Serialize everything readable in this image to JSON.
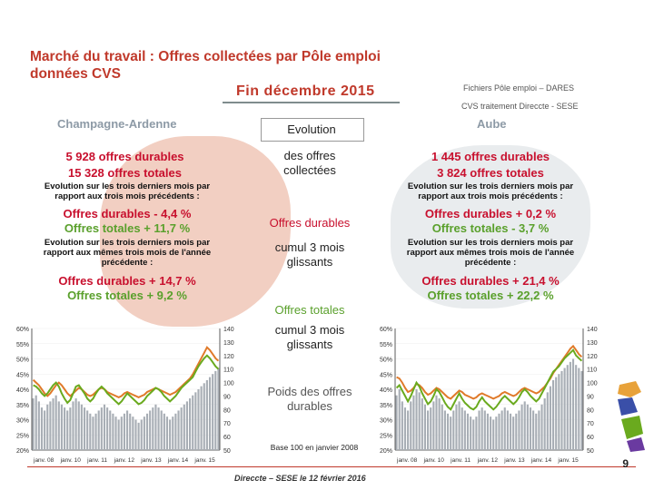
{
  "header": {
    "title_line1": "Marché du travail : Offres collectées par Pôle emploi",
    "title_line2": "données CVS",
    "period": "Fin  décembre  2015",
    "source_line1": "Fichiers Pôle emploi – DARES",
    "source_line2": "CVS traitement Direccte - SESE"
  },
  "left": {
    "region": "Champagne-Ardenne",
    "stat_durables": "5 928 offres durables",
    "stat_totales": "15 328 offres totales",
    "note1": "Evolution sur les trois derniers mois par rapport aux trois mois précédents :",
    "pct1_dur": "Offres durables -  4,4 %",
    "pct1_tot": "Offres totales +  11,7 %",
    "note2": "Evolution sur les trois derniers mois par rapport aux mêmes trois mois de l'année précédente :",
    "pct2_dur": "Offres durables +  14,7 %",
    "pct2_tot": "Offres totales +  9,2 %"
  },
  "right": {
    "region": "Aube",
    "stat_durables": "1 445 offres durables",
    "stat_totales": "3 824 offres totales",
    "note1": "Evolution sur les trois derniers mois par rapport aux trois mois précédents :",
    "pct1_dur": "Offres durables +  0,2 %",
    "pct1_tot": "Offres totales -  3,7 %",
    "note2": "Evolution sur les trois derniers mois par rapport aux mêmes trois mois de l'année précédente :",
    "pct2_dur": "Offres durables +  21,4 %",
    "pct2_tot": "Offres totales +  22,2 %"
  },
  "middle": {
    "evolution": "Evolution",
    "des_offres": "des  offres collectées",
    "offres_durables": "Offres durables",
    "cumul1": "cumul 3 mois glissants",
    "offres_totales": "Offres totales",
    "cumul2": "cumul 3 mois glissants",
    "poids": "Poids des offres durables",
    "base": "Base 100 en janvier 2008"
  },
  "footer": {
    "text": "Direccte – SESE le 12 février 2016",
    "page": "9"
  },
  "chart_data": [
    {
      "type": "line",
      "name": "Champagne-Ardenne",
      "x_ticks": [
        "janv. 08",
        "janv. 10",
        "janv. 11",
        "janv. 12",
        "janv. 13",
        "janv. 14",
        "janv. 15"
      ],
      "y_left_ticks": [
        "20%",
        "25%",
        "30%",
        "35%",
        "40%",
        "45%",
        "50%",
        "55%",
        "60%"
      ],
      "y_left_range": [
        20,
        60
      ],
      "y_right_ticks": [
        "50",
        "60",
        "70",
        "80",
        "90",
        "100",
        "110",
        "120",
        "130",
        "140"
      ],
      "y_right_range": [
        50,
        140
      ],
      "bars_pct": [
        37,
        38,
        36,
        34,
        33,
        35,
        36,
        37,
        38,
        36,
        35,
        34,
        33,
        34,
        36,
        37,
        36,
        35,
        34,
        33,
        32,
        31,
        32,
        33,
        34,
        35,
        34,
        33,
        32,
        31,
        30,
        31,
        32,
        33,
        32,
        31,
        30,
        29,
        30,
        31,
        32,
        33,
        34,
        35,
        34,
        33,
        32,
        31,
        30,
        31,
        32,
        33,
        34,
        35,
        36,
        37,
        38,
        39,
        40,
        41,
        42,
        43,
        44,
        45,
        46,
        47
      ],
      "green_index": [
        98,
        97,
        95,
        92,
        90,
        92,
        95,
        98,
        100,
        97,
        92,
        88,
        85,
        87,
        92,
        97,
        98,
        95,
        92,
        88,
        86,
        88,
        92,
        95,
        97,
        95,
        92,
        90,
        88,
        86,
        84,
        86,
        89,
        92,
        90,
        88,
        86,
        84,
        85,
        87,
        90,
        92,
        94,
        96,
        95,
        93,
        90,
        88,
        86,
        88,
        90,
        93,
        96,
        98,
        100,
        102,
        104,
        108,
        112,
        115,
        118,
        120,
        118,
        115,
        112,
        110
      ],
      "orange_index": [
        102,
        100,
        98,
        95,
        92,
        90,
        92,
        95,
        98,
        100,
        98,
        95,
        92,
        90,
        92,
        94,
        96,
        95,
        93,
        91,
        90,
        91,
        93,
        95,
        96,
        95,
        93,
        92,
        91,
        90,
        89,
        90,
        92,
        93,
        92,
        91,
        90,
        89,
        90,
        91,
        93,
        94,
        95,
        96,
        95,
        94,
        93,
        92,
        91,
        92,
        93,
        95,
        97,
        99,
        101,
        103,
        106,
        110,
        114,
        118,
        122,
        126,
        124,
        121,
        118,
        116
      ]
    },
    {
      "type": "line",
      "name": "Aube",
      "x_ticks": [
        "janv. 08",
        "janv. 10",
        "janv. 11",
        "janv. 12",
        "janv. 13",
        "janv. 14",
        "janv. 15"
      ],
      "y_left_ticks": [
        "20%",
        "25%",
        "30%",
        "35%",
        "40%",
        "45%",
        "50%",
        "55%",
        "60%"
      ],
      "y_left_range": [
        20,
        60
      ],
      "y_right_ticks": [
        "50",
        "60",
        "70",
        "80",
        "90",
        "100",
        "110",
        "120",
        "130",
        "140"
      ],
      "y_right_range": [
        50,
        140
      ],
      "bars_pct": [
        38,
        40,
        36,
        34,
        33,
        36,
        38,
        40,
        39,
        37,
        35,
        33,
        34,
        36,
        38,
        37,
        35,
        33,
        32,
        31,
        33,
        35,
        36,
        34,
        33,
        32,
        31,
        30,
        31,
        33,
        34,
        33,
        32,
        31,
        30,
        31,
        32,
        33,
        34,
        33,
        32,
        31,
        32,
        33,
        35,
        36,
        35,
        34,
        33,
        32,
        33,
        35,
        37,
        39,
        41,
        43,
        44,
        45,
        46,
        47,
        48,
        49,
        50,
        48,
        47,
        46
      ],
      "green_index": [
        96,
        98,
        94,
        90,
        86,
        90,
        95,
        100,
        97,
        92,
        88,
        84,
        86,
        90,
        95,
        93,
        89,
        85,
        82,
        80,
        84,
        88,
        92,
        88,
        85,
        83,
        81,
        80,
        82,
        86,
        89,
        86,
        84,
        82,
        80,
        82,
        85,
        88,
        90,
        88,
        86,
        84,
        86,
        89,
        93,
        95,
        93,
        90,
        88,
        86,
        88,
        92,
        96,
        100,
        104,
        108,
        110,
        112,
        115,
        118,
        120,
        122,
        124,
        120,
        118,
        116
      ],
      "orange_index": [
        104,
        103,
        100,
        96,
        93,
        94,
        96,
        99,
        98,
        96,
        93,
        91,
        92,
        94,
        96,
        95,
        93,
        91,
        89,
        88,
        90,
        92,
        94,
        93,
        91,
        90,
        89,
        88,
        89,
        91,
        92,
        91,
        90,
        89,
        88,
        89,
        90,
        92,
        93,
        92,
        91,
        90,
        91,
        93,
        95,
        96,
        95,
        94,
        93,
        92,
        93,
        95,
        97,
        100,
        103,
        107,
        110,
        113,
        116,
        119,
        122,
        125,
        127,
        124,
        121,
        119
      ]
    }
  ],
  "colors": {
    "title": "#c0392b",
    "durables": "#c8102e",
    "totales": "#5aa02c",
    "green_line": "#6aaa1e",
    "orange_line": "#e07a2a",
    "bars": "#a8aeb5",
    "left_blob": "#f2cfc2",
    "right_blob": "#e9ecee"
  }
}
